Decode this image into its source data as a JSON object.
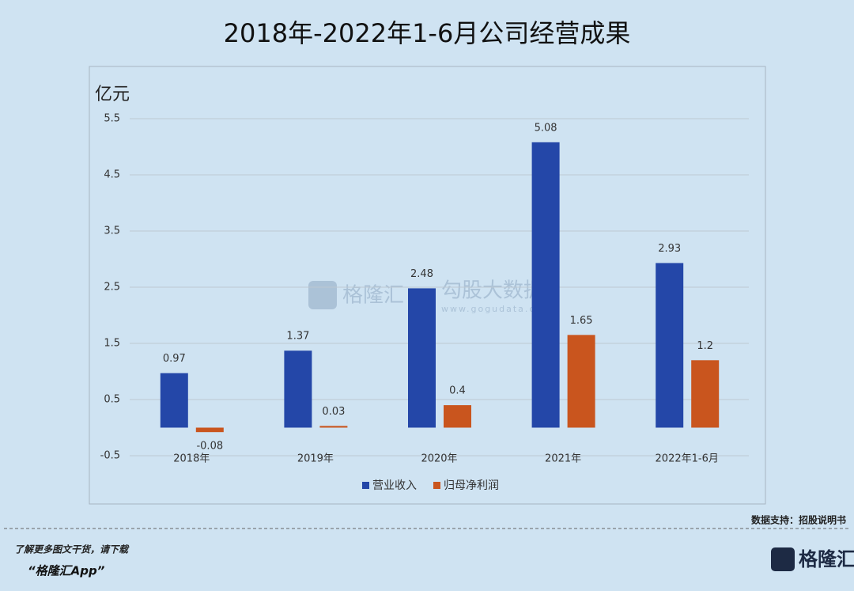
{
  "chart_data": {
    "type": "bar",
    "title": "2018年-2022年1-6月公司经营成果",
    "y_unit": "亿元",
    "categories": [
      "2018年",
      "2019年",
      "2020年",
      "2021年",
      "2022年1-6月"
    ],
    "series": [
      {
        "name": "营业收入",
        "color": "#2447a8",
        "values": [
          0.97,
          1.37,
          2.48,
          5.08,
          2.93
        ]
      },
      {
        "name": "归母净利润",
        "color": "#c9551e",
        "values": [
          -0.08,
          0.03,
          0.4,
          1.65,
          1.2
        ]
      }
    ],
    "ylim": [
      -0.5,
      5.5
    ],
    "yticks": [
      -0.5,
      0.5,
      1.5,
      2.5,
      3.5,
      4.5,
      5.5
    ],
    "grid": true,
    "legend": "bottom"
  },
  "watermark": {
    "brand": "格隆汇",
    "partner": "勾股大数据",
    "url": "www.gogudata.com"
  },
  "footer": {
    "source": "数据支持：招股说明书",
    "promo": "了解更多图文干货，请下载",
    "app": "“格隆汇App”",
    "logo": "格隆汇"
  }
}
